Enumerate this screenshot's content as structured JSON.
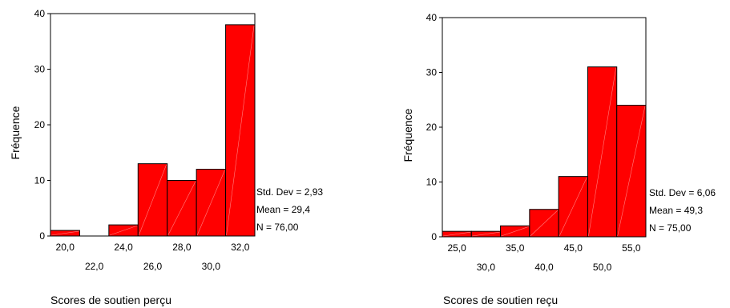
{
  "chart_data": [
    {
      "type": "bar",
      "xlabel": "Scores de soutien perçu",
      "ylabel": "Fréquence",
      "ylim": [
        0,
        40
      ],
      "y_ticks": [
        "0",
        "10",
        "20",
        "30",
        "40"
      ],
      "x_ticks_upper": [
        "20,0",
        "24,0",
        "28,0",
        "32,0"
      ],
      "x_ticks_lower": [
        "22,0",
        "26,0",
        "30,0"
      ],
      "x_tick_values_upper": [
        20,
        24,
        28,
        32
      ],
      "x_tick_values_lower": [
        22,
        26,
        30
      ],
      "xlim": [
        19,
        33
      ],
      "bin_width": 2,
      "bins": [
        {
          "center": 20,
          "value": 1
        },
        {
          "center": 22,
          "value": 0
        },
        {
          "center": 24,
          "value": 2
        },
        {
          "center": 26,
          "value": 13
        },
        {
          "center": 28,
          "value": 10
        },
        {
          "center": 30,
          "value": 12
        },
        {
          "center": 32,
          "value": 38
        }
      ],
      "stats": [
        "Std. Dev = 2,93",
        "Mean = 29,4",
        "N = 76,00"
      ],
      "bar_color": "#ff0000",
      "grid": false
    },
    {
      "type": "bar",
      "xlabel": "Scores de soutien reçu",
      "ylabel": "Fréquence",
      "ylim": [
        0,
        40
      ],
      "y_ticks": [
        "0",
        "10",
        "20",
        "30",
        "40"
      ],
      "x_ticks_upper": [
        "25,0",
        "35,0",
        "45,0",
        "55,0"
      ],
      "x_ticks_lower": [
        "30,0",
        "40,0",
        "50,0"
      ],
      "x_tick_values_upper": [
        25,
        35,
        45,
        55
      ],
      "x_tick_values_lower": [
        30,
        40,
        50
      ],
      "xlim": [
        22.5,
        57.5
      ],
      "bin_width": 5,
      "bins": [
        {
          "center": 25,
          "value": 1
        },
        {
          "center": 30,
          "value": 1
        },
        {
          "center": 35,
          "value": 2
        },
        {
          "center": 40,
          "value": 5
        },
        {
          "center": 45,
          "value": 11
        },
        {
          "center": 50,
          "value": 31
        },
        {
          "center": 55,
          "value": 24
        }
      ],
      "stats": [
        "Std. Dev = 6,06",
        "Mean = 49,3",
        "N = 75,00"
      ],
      "bar_color": "#ff0000",
      "grid": false
    }
  ]
}
